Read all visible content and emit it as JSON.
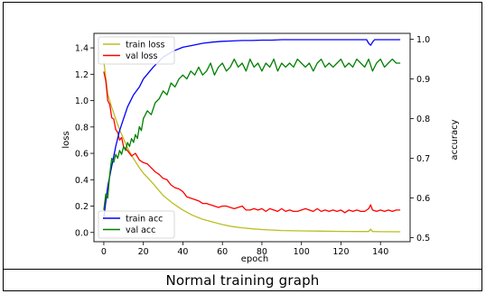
{
  "caption": "Normal training graph",
  "colors": {
    "train_loss": "#bcbd22",
    "val_loss": "#ff0000",
    "train_acc": "#0000ff",
    "val_acc": "#008000"
  },
  "chart_data": {
    "type": "line",
    "title": "",
    "xlabel": "epoch",
    "ylabel_left": "loss",
    "ylabel_right": "accuracy",
    "xlim": [
      -5,
      155
    ],
    "ylim_left": [
      -0.07,
      1.51
    ],
    "ylim_right": [
      0.49,
      1.015
    ],
    "grid": false,
    "x_ticks": [
      0,
      20,
      40,
      60,
      80,
      100,
      120,
      140
    ],
    "y_left_ticks": [
      0.0,
      0.2,
      0.4,
      0.6,
      0.8,
      1.0,
      1.2,
      1.4
    ],
    "y_right_ticks": [
      0.5,
      0.6,
      0.7,
      0.8,
      0.9,
      1.0
    ],
    "legends": [
      {
        "placement": "upper-left",
        "axis": "left",
        "entries": [
          "train loss",
          "val loss"
        ]
      },
      {
        "placement": "lower-left",
        "axis": "right",
        "entries": [
          "train acc",
          "val acc"
        ]
      }
    ],
    "series": [
      {
        "name": "train loss",
        "axis": "left",
        "color": "#bcbd22",
        "x": [
          0,
          2,
          4,
          6,
          8,
          10,
          12,
          15,
          18,
          20,
          25,
          30,
          35,
          40,
          45,
          50,
          55,
          60,
          65,
          70,
          75,
          80,
          90,
          100,
          110,
          120,
          130,
          134,
          135,
          136,
          140,
          150
        ],
        "y": [
          1.3,
          1.05,
          0.95,
          0.86,
          0.78,
          0.71,
          0.64,
          0.56,
          0.49,
          0.45,
          0.37,
          0.28,
          0.22,
          0.17,
          0.13,
          0.1,
          0.08,
          0.06,
          0.045,
          0.035,
          0.028,
          0.022,
          0.015,
          0.012,
          0.01,
          0.008,
          0.007,
          0.007,
          0.025,
          0.007,
          0.006,
          0.005
        ]
      },
      {
        "name": "val loss",
        "axis": "left",
        "color": "#ff0000",
        "x": [
          0,
          1,
          2,
          3,
          4,
          5,
          6,
          7,
          8,
          9,
          10,
          12,
          14,
          16,
          18,
          20,
          22,
          24,
          26,
          28,
          30,
          32,
          34,
          36,
          38,
          40,
          42,
          44,
          46,
          48,
          50,
          52,
          54,
          56,
          58,
          60,
          62,
          64,
          66,
          68,
          70,
          72,
          74,
          76,
          78,
          80,
          82,
          84,
          86,
          88,
          90,
          92,
          94,
          96,
          98,
          100,
          102,
          104,
          106,
          108,
          110,
          112,
          114,
          116,
          118,
          120,
          122,
          124,
          126,
          128,
          130,
          132,
          134,
          135,
          136,
          138,
          140,
          142,
          144,
          146,
          148,
          150
        ],
        "y": [
          1.22,
          1.15,
          1.0,
          0.97,
          0.87,
          0.86,
          0.78,
          0.76,
          0.7,
          0.72,
          0.65,
          0.62,
          0.58,
          0.6,
          0.55,
          0.53,
          0.52,
          0.49,
          0.46,
          0.44,
          0.41,
          0.4,
          0.36,
          0.34,
          0.33,
          0.31,
          0.27,
          0.26,
          0.25,
          0.24,
          0.22,
          0.22,
          0.21,
          0.2,
          0.19,
          0.2,
          0.2,
          0.19,
          0.18,
          0.19,
          0.2,
          0.17,
          0.17,
          0.18,
          0.17,
          0.18,
          0.16,
          0.18,
          0.17,
          0.16,
          0.18,
          0.16,
          0.17,
          0.16,
          0.16,
          0.17,
          0.18,
          0.17,
          0.16,
          0.18,
          0.16,
          0.17,
          0.16,
          0.17,
          0.16,
          0.17,
          0.15,
          0.17,
          0.16,
          0.17,
          0.16,
          0.16,
          0.18,
          0.21,
          0.17,
          0.16,
          0.17,
          0.16,
          0.17,
          0.16,
          0.17,
          0.17
        ]
      },
      {
        "name": "train acc",
        "axis": "right",
        "color": "#0000ff",
        "x": [
          0,
          2,
          4,
          6,
          8,
          10,
          12,
          15,
          18,
          20,
          25,
          30,
          35,
          40,
          45,
          50,
          55,
          60,
          65,
          70,
          75,
          80,
          85,
          90,
          100,
          110,
          120,
          130,
          133,
          134,
          135,
          136,
          137,
          140,
          150
        ],
        "y": [
          0.55,
          0.63,
          0.68,
          0.73,
          0.77,
          0.8,
          0.83,
          0.86,
          0.88,
          0.9,
          0.93,
          0.955,
          0.97,
          0.98,
          0.985,
          0.99,
          0.993,
          0.995,
          0.996,
          0.997,
          0.997,
          0.998,
          0.998,
          0.999,
          0.999,
          0.999,
          0.999,
          0.999,
          0.999,
          0.99,
          0.985,
          0.993,
          0.999,
          0.999,
          0.999
        ]
      },
      {
        "name": "val acc",
        "axis": "right",
        "color": "#008000",
        "x": [
          0,
          1,
          2,
          3,
          4,
          5,
          6,
          7,
          8,
          9,
          10,
          11,
          12,
          13,
          14,
          15,
          16,
          17,
          18,
          19,
          20,
          22,
          24,
          26,
          28,
          30,
          32,
          34,
          36,
          38,
          40,
          42,
          44,
          46,
          48,
          50,
          52,
          54,
          56,
          58,
          60,
          62,
          64,
          66,
          68,
          70,
          72,
          74,
          76,
          78,
          80,
          82,
          84,
          86,
          88,
          90,
          92,
          94,
          96,
          98,
          100,
          102,
          104,
          106,
          108,
          110,
          112,
          114,
          116,
          118,
          120,
          122,
          124,
          126,
          128,
          130,
          132,
          134,
          136,
          138,
          140,
          142,
          144,
          146,
          148,
          150
        ],
        "y": [
          0.57,
          0.61,
          0.6,
          0.66,
          0.7,
          0.69,
          0.71,
          0.7,
          0.72,
          0.71,
          0.73,
          0.72,
          0.74,
          0.73,
          0.75,
          0.74,
          0.76,
          0.75,
          0.78,
          0.77,
          0.8,
          0.82,
          0.81,
          0.84,
          0.85,
          0.87,
          0.86,
          0.89,
          0.88,
          0.9,
          0.91,
          0.9,
          0.92,
          0.91,
          0.93,
          0.91,
          0.92,
          0.94,
          0.91,
          0.93,
          0.94,
          0.92,
          0.93,
          0.95,
          0.93,
          0.94,
          0.92,
          0.95,
          0.93,
          0.94,
          0.92,
          0.94,
          0.93,
          0.95,
          0.92,
          0.94,
          0.93,
          0.94,
          0.93,
          0.95,
          0.94,
          0.93,
          0.94,
          0.92,
          0.94,
          0.95,
          0.93,
          0.94,
          0.93,
          0.94,
          0.95,
          0.93,
          0.94,
          0.93,
          0.95,
          0.94,
          0.93,
          0.95,
          0.92,
          0.94,
          0.95,
          0.93,
          0.94,
          0.95,
          0.94,
          0.94
        ]
      }
    ]
  }
}
